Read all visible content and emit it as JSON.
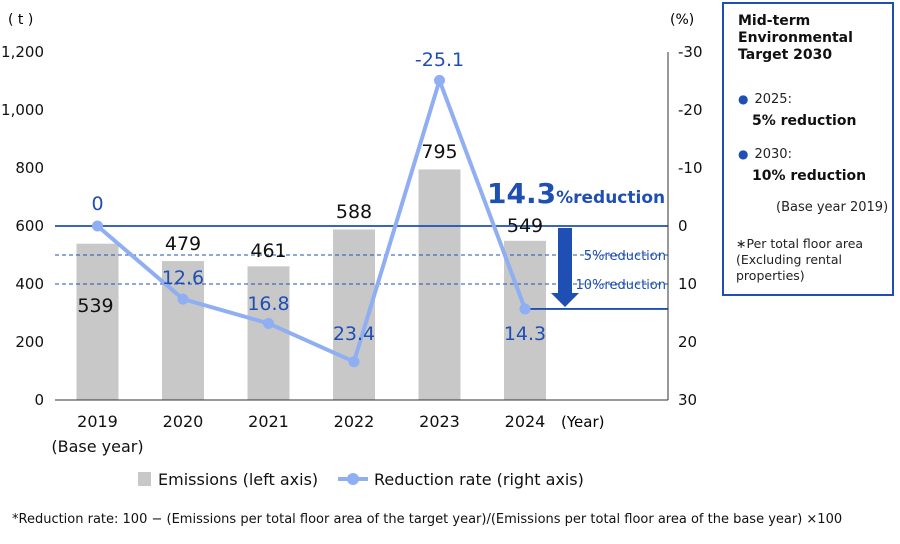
{
  "chart_data": {
    "type": "bar+line",
    "categories": [
      "2019",
      "2020",
      "2021",
      "2022",
      "2023",
      "2024"
    ],
    "category_sublabels": [
      "(Base year)",
      "",
      "",
      "",
      "",
      ""
    ],
    "x_unit": "(Year)",
    "series": [
      {
        "name": "Emissions (left axis)",
        "type": "bar",
        "axis": "left",
        "values": [
          539,
          479,
          461,
          588,
          795,
          549
        ],
        "color": "#c8c8c8"
      },
      {
        "name": "Reduction rate (right axis)",
        "type": "line",
        "axis": "right",
        "values": [
          0,
          12.6,
          16.8,
          23.4,
          -25.1,
          14.3
        ],
        "labels": [
          "0",
          "12.6",
          "16.8",
          "23.4",
          "-25.1",
          "14.3"
        ],
        "color": "#90aef2"
      }
    ],
    "left_axis": {
      "unit": "( t )",
      "ylim": [
        0,
        1200
      ],
      "ticks": [
        "0",
        "200",
        "400",
        "600",
        "800",
        "1,000",
        "1,200"
      ],
      "tick_values": [
        0,
        200,
        400,
        600,
        800,
        1000,
        1200
      ]
    },
    "right_axis": {
      "unit": "(%)",
      "ylim": [
        30,
        -30
      ],
      "inverted": true,
      "ticks": [
        "30",
        "20",
        "10",
        "0",
        "-10",
        "-20",
        "-30"
      ],
      "tick_values": [
        30,
        20,
        10,
        0,
        -10,
        -20,
        -30
      ]
    },
    "reference_lines": [
      {
        "value": 0,
        "axis": "right",
        "style": "solid",
        "label": ""
      },
      {
        "value": 5,
        "axis": "right",
        "style": "dashed",
        "label": "5%reduction"
      },
      {
        "value": 10,
        "axis": "right",
        "style": "dashed",
        "label": "10%reduction"
      },
      {
        "value": 14.3,
        "axis": "right",
        "style": "solid",
        "label": ""
      }
    ],
    "highlight": {
      "value_text": "14.3",
      "suffix_text": "%reduction",
      "from": 0,
      "to": 14.3
    },
    "accent_color": "#1f4fb3",
    "legend_position": "bottom",
    "grid": false
  },
  "target_box": {
    "title": "Mid-term Environmental Target 2030",
    "items": [
      {
        "year": "2025:",
        "text": "5% reduction"
      },
      {
        "year": "2030:",
        "text": "10% reduction"
      }
    ],
    "base": "(Base year 2019)",
    "note": "∗Per total floor area (Excluding rental properties)"
  },
  "footnote": "*Reduction rate: 100 − (Emissions per total floor area of the target year)/(Emissions per total floor area of the base year) ×100"
}
